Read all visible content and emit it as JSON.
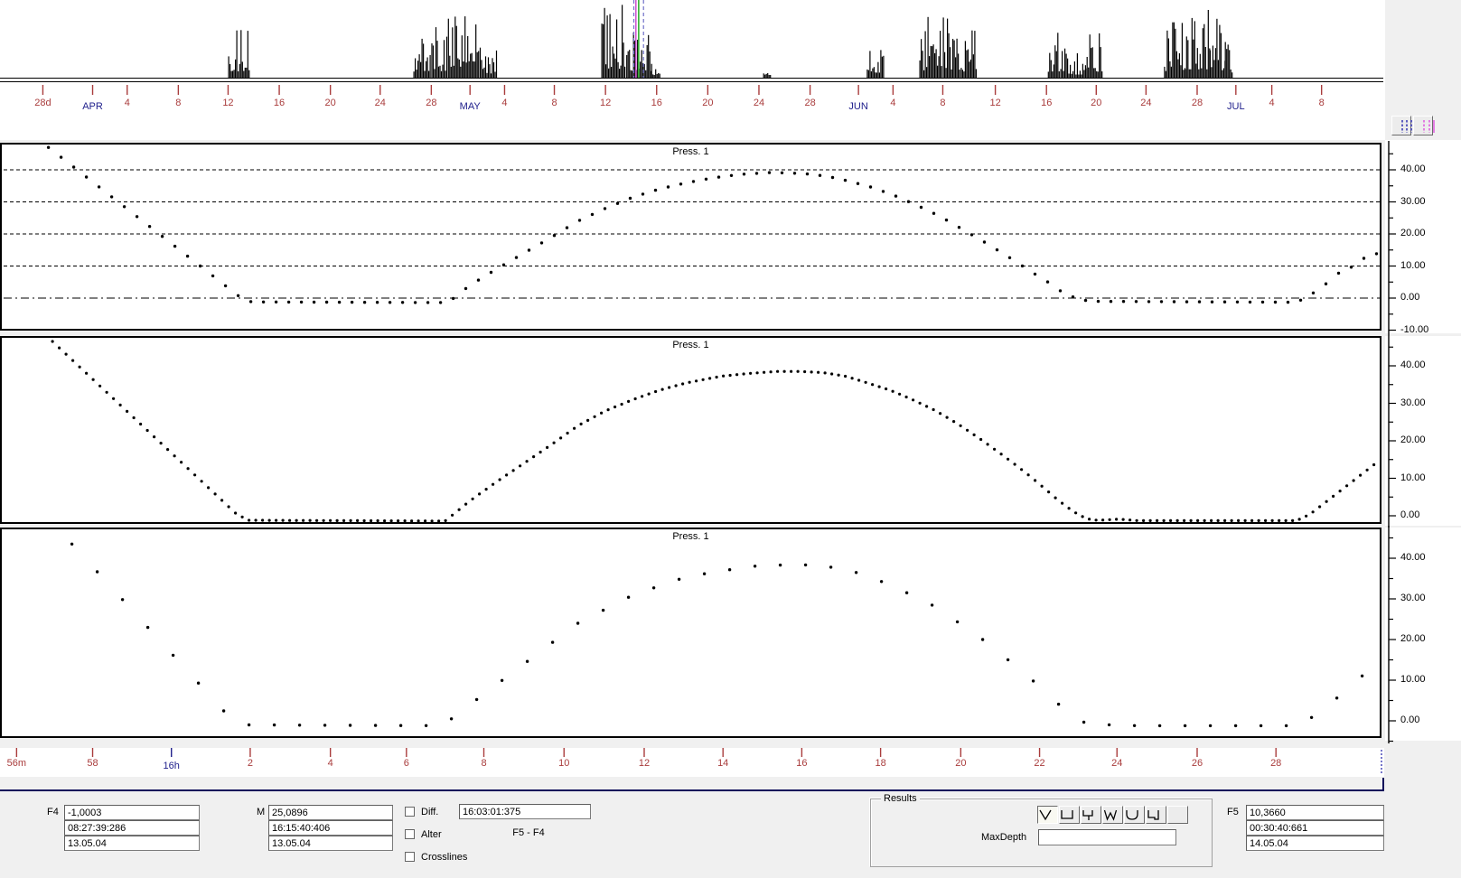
{
  "colors": {
    "day_tick_red": "#a93c3c",
    "month_label_navy": "#20208c",
    "separator_navy": "#0a0a5a",
    "cursor_green": "#2faf2f",
    "cursor_magenta": "#cc44cc",
    "cursor_dashed_blue": "#7070c8",
    "toolbar_icon_navy": "#3c3cb4",
    "toolbar_icon_magenta": "#e060e0",
    "data_black": "#000000"
  },
  "timeline_axis": {
    "ticks": [
      {
        "label": "28d",
        "x": 0.031,
        "month": false
      },
      {
        "label": "APR",
        "x": 0.067,
        "month": true
      },
      {
        "label": "4",
        "x": 0.092,
        "month": false
      },
      {
        "label": "8",
        "x": 0.129,
        "month": false
      },
      {
        "label": "12",
        "x": 0.165,
        "month": false
      },
      {
        "label": "16",
        "x": 0.202,
        "month": false
      },
      {
        "label": "20",
        "x": 0.239,
        "month": false
      },
      {
        "label": "24",
        "x": 0.275,
        "month": false
      },
      {
        "label": "28",
        "x": 0.312,
        "month": false
      },
      {
        "label": "MAY",
        "x": 0.34,
        "month": true
      },
      {
        "label": "4",
        "x": 0.365,
        "month": false
      },
      {
        "label": "8",
        "x": 0.401,
        "month": false
      },
      {
        "label": "12",
        "x": 0.438,
        "month": false
      },
      {
        "label": "16",
        "x": 0.475,
        "month": false
      },
      {
        "label": "20",
        "x": 0.512,
        "month": false
      },
      {
        "label": "24",
        "x": 0.549,
        "month": false
      },
      {
        "label": "28",
        "x": 0.586,
        "month": false
      },
      {
        "label": "JUN",
        "x": 0.621,
        "month": true
      },
      {
        "label": "4",
        "x": 0.646,
        "month": false
      },
      {
        "label": "8",
        "x": 0.682,
        "month": false
      },
      {
        "label": "12",
        "x": 0.72,
        "month": false
      },
      {
        "label": "16",
        "x": 0.757,
        "month": false
      },
      {
        "label": "20",
        "x": 0.793,
        "month": false
      },
      {
        "label": "24",
        "x": 0.829,
        "month": false
      },
      {
        "label": "28",
        "x": 0.866,
        "month": false
      },
      {
        "label": "JUL",
        "x": 0.894,
        "month": true
      },
      {
        "label": "4",
        "x": 0.92,
        "month": false
      },
      {
        "label": "8",
        "x": 0.956,
        "month": false
      }
    ]
  },
  "bottom_axis": {
    "ticks": [
      {
        "label": "56m",
        "x": 0.012,
        "month": false
      },
      {
        "label": "58",
        "x": 0.067,
        "month": false
      },
      {
        "label": "16h",
        "x": 0.124,
        "month": true
      },
      {
        "label": "2",
        "x": 0.181,
        "month": false
      },
      {
        "label": "4",
        "x": 0.239,
        "month": false
      },
      {
        "label": "6",
        "x": 0.294,
        "month": false
      },
      {
        "label": "8",
        "x": 0.35,
        "month": false
      },
      {
        "label": "10",
        "x": 0.408,
        "month": false
      },
      {
        "label": "12",
        "x": 0.466,
        "month": false
      },
      {
        "label": "14",
        "x": 0.523,
        "month": false
      },
      {
        "label": "16",
        "x": 0.58,
        "month": false
      },
      {
        "label": "18",
        "x": 0.637,
        "month": false
      },
      {
        "label": "20",
        "x": 0.695,
        "month": false
      },
      {
        "label": "22",
        "x": 0.752,
        "month": false
      },
      {
        "label": "24",
        "x": 0.808,
        "month": false
      },
      {
        "label": "26",
        "x": 0.866,
        "month": false
      },
      {
        "label": "28",
        "x": 0.923,
        "month": false
      }
    ]
  },
  "panels": [
    {
      "title": "Press. 1",
      "y_ticks": [
        {
          "v": 40,
          "label": "40.00"
        },
        {
          "v": 30,
          "label": "30.00"
        },
        {
          "v": 20,
          "label": "20.00"
        },
        {
          "v": 10,
          "label": "10.00"
        },
        {
          "v": 0,
          "label": "0.00"
        },
        {
          "v": -10,
          "label": "-10.00"
        }
      ],
      "gridlines_dashed": [
        40,
        30,
        20,
        10
      ],
      "gridline_dashdot": 0
    },
    {
      "title": "Press. 1",
      "y_ticks": [
        {
          "v": 40,
          "label": "40.00"
        },
        {
          "v": 30,
          "label": "30.00"
        },
        {
          "v": 20,
          "label": "20.00"
        },
        {
          "v": 10,
          "label": "10.00"
        },
        {
          "v": 0,
          "label": "0.00"
        }
      ],
      "gridlines_dashed": [],
      "gridline_dashdot": null
    },
    {
      "title": "Press. 1",
      "y_ticks": [
        {
          "v": 40,
          "label": "40.00"
        },
        {
          "v": 30,
          "label": "30.00"
        },
        {
          "v": 20,
          "label": "20.00"
        },
        {
          "v": 10,
          "label": "10.00"
        },
        {
          "v": 0,
          "label": "0.00"
        }
      ],
      "gridlines_dashed": [],
      "gridline_dashdot": null
    }
  ],
  "chart_data": [
    {
      "type": "bar",
      "name": "event-activity-timeline",
      "x_domain": [
        "28 Mar",
        "9 Jul"
      ],
      "description": "black event/activity spikes per time, clusters given as fractional x-range and relative max height 0-1",
      "clusters": [
        {
          "x0": 0.165,
          "x1": 0.172,
          "h": 0.68
        },
        {
          "x0": 0.173,
          "x1": 0.18,
          "h": 0.73
        },
        {
          "x0": 0.299,
          "x1": 0.311,
          "h": 0.56
        },
        {
          "x0": 0.312,
          "x1": 0.323,
          "h": 0.71
        },
        {
          "x0": 0.324,
          "x1": 0.335,
          "h": 1.0
        },
        {
          "x0": 0.335,
          "x1": 0.346,
          "h": 0.85
        },
        {
          "x0": 0.347,
          "x1": 0.359,
          "h": 0.47
        },
        {
          "x0": 0.435,
          "x1": 0.452,
          "h": 0.96
        },
        {
          "x0": 0.453,
          "x1": 0.471,
          "h": 0.73
        },
        {
          "x0": 0.471,
          "x1": 0.477,
          "h": 0.2
        },
        {
          "x0": 0.552,
          "x1": 0.557,
          "h": 0.06
        },
        {
          "x0": 0.627,
          "x1": 0.639,
          "h": 0.55
        },
        {
          "x0": 0.665,
          "x1": 0.681,
          "h": 0.8
        },
        {
          "x0": 0.682,
          "x1": 0.694,
          "h": 0.85
        },
        {
          "x0": 0.695,
          "x1": 0.706,
          "h": 0.68
        },
        {
          "x0": 0.758,
          "x1": 0.766,
          "h": 0.61
        },
        {
          "x0": 0.767,
          "x1": 0.776,
          "h": 0.42
        },
        {
          "x0": 0.777,
          "x1": 0.786,
          "h": 0.35
        },
        {
          "x0": 0.786,
          "x1": 0.797,
          "h": 0.66
        },
        {
          "x0": 0.842,
          "x1": 0.858,
          "h": 0.73
        },
        {
          "x0": 0.858,
          "x1": 0.875,
          "h": 0.92
        },
        {
          "x0": 0.875,
          "x1": 0.886,
          "h": 0.78
        },
        {
          "x0": 0.886,
          "x1": 0.891,
          "h": 0.47
        }
      ],
      "cursor": {
        "dashed_x": [
          0.4585,
          0.4655
        ],
        "magenta_x": 0.46,
        "green_x": 0.462
      }
    },
    {
      "type": "scatter",
      "name": "press1-overview",
      "title": "Press. 1",
      "ylim": [
        -10,
        50
      ],
      "anchors": [
        [
          0.035,
          47
        ],
        [
          0.173,
          0.5
        ],
        [
          0.182,
          -1.2
        ],
        [
          0.324,
          -1.4
        ],
        [
          0.34,
          4
        ],
        [
          0.359,
          9
        ],
        [
          0.379,
          14
        ],
        [
          0.399,
          19
        ],
        [
          0.418,
          24
        ],
        [
          0.438,
          28
        ],
        [
          0.458,
          31.5
        ],
        [
          0.477,
          34
        ],
        [
          0.497,
          36
        ],
        [
          0.516,
          37.5
        ],
        [
          0.536,
          38.6
        ],
        [
          0.559,
          39.2
        ],
        [
          0.582,
          38.8
        ],
        [
          0.598,
          38
        ],
        [
          0.614,
          36.5
        ],
        [
          0.631,
          34.5
        ],
        [
          0.647,
          32
        ],
        [
          0.663,
          29
        ],
        [
          0.68,
          25.5
        ],
        [
          0.696,
          21.5
        ],
        [
          0.712,
          17.5
        ],
        [
          0.729,
          13
        ],
        [
          0.745,
          8.5
        ],
        [
          0.758,
          5
        ],
        [
          0.768,
          2
        ],
        [
          0.778,
          0
        ],
        [
          0.788,
          -1
        ],
        [
          0.938,
          -1.3
        ],
        [
          0.948,
          1
        ],
        [
          0.958,
          4
        ],
        [
          0.967,
          7.5
        ],
        [
          0.977,
          9.5
        ],
        [
          0.987,
          12.5
        ],
        [
          0.997,
          14
        ]
      ]
    },
    {
      "type": "scatter",
      "name": "press1-detail",
      "title": "Press. 1",
      "ylim": [
        -5,
        48
      ],
      "anchors": [
        [
          0.038,
          46.5
        ],
        [
          0.171,
          0.5
        ],
        [
          0.18,
          -1.2
        ],
        [
          0.322,
          -1.4
        ],
        [
          0.34,
          4
        ],
        [
          0.359,
          9
        ],
        [
          0.379,
          14
        ],
        [
          0.399,
          19
        ],
        [
          0.418,
          24
        ],
        [
          0.438,
          28
        ],
        [
          0.458,
          31
        ],
        [
          0.477,
          33.5
        ],
        [
          0.497,
          35.5
        ],
        [
          0.523,
          37.3
        ],
        [
          0.543,
          38
        ],
        [
          0.562,
          38.5
        ],
        [
          0.578,
          38.5
        ],
        [
          0.595,
          38.2
        ],
        [
          0.611,
          37.3
        ],
        [
          0.627,
          35.5
        ],
        [
          0.644,
          33.5
        ],
        [
          0.66,
          31
        ],
        [
          0.677,
          28
        ],
        [
          0.693,
          24.5
        ],
        [
          0.709,
          20.5
        ],
        [
          0.726,
          16
        ],
        [
          0.742,
          11.5
        ],
        [
          0.755,
          7.5
        ],
        [
          0.766,
          4
        ],
        [
          0.777,
          1
        ],
        [
          0.786,
          -0.8
        ],
        [
          0.794,
          -1.2
        ],
        [
          0.81,
          -0.9
        ],
        [
          0.823,
          -1.3
        ],
        [
          0.938,
          -1.3
        ],
        [
          0.948,
          0.5
        ],
        [
          0.997,
          14.5
        ]
      ]
    },
    {
      "type": "scatter",
      "name": "press1-coarse",
      "title": "Press. 1",
      "ylim": [
        -5,
        48
      ],
      "anchors": [
        [
          0.052,
          43.5
        ],
        [
          0.167,
          0.5
        ],
        [
          0.176,
          -1
        ],
        [
          0.32,
          -1.2
        ],
        [
          0.34,
          4
        ],
        [
          0.379,
          14
        ],
        [
          0.418,
          24
        ],
        [
          0.458,
          31
        ],
        [
          0.497,
          35.5
        ],
        [
          0.543,
          38
        ],
        [
          0.578,
          38.5
        ],
        [
          0.611,
          37.5
        ],
        [
          0.644,
          33.5
        ],
        [
          0.677,
          28
        ],
        [
          0.709,
          20.5
        ],
        [
          0.742,
          11.5
        ],
        [
          0.766,
          4
        ],
        [
          0.786,
          -0.8
        ],
        [
          0.823,
          -1.2
        ],
        [
          0.938,
          -1.2
        ],
        [
          0.955,
          2
        ],
        [
          0.975,
          8
        ],
        [
          0.997,
          14.5
        ]
      ]
    }
  ],
  "toolbar": {
    "blue_dashes_button": "blue-dashed-cursor-lines",
    "magenta_dashes_button": "magenta-dashed-cursor-lines"
  },
  "controls": {
    "f4": {
      "label": "F4",
      "value": "-1,0003",
      "time": "08:27:39:286",
      "date": "13.05.04"
    },
    "m": {
      "label": "M",
      "value": "25,0896",
      "time": "16:15:40:406",
      "date": "13.05.04"
    },
    "f5": {
      "label": "F5",
      "value": "10,3660",
      "time": "00:30:40:661",
      "date": "14.05.04"
    },
    "checkboxes": [
      {
        "label": "Diff.",
        "checked": false
      },
      {
        "label": "Alter",
        "checked": false
      },
      {
        "label": "Crosslines",
        "checked": false
      }
    ],
    "delta_time": "16:03:01:375",
    "delta_label": "F5 - F4",
    "results": {
      "legend": "Results",
      "maxdepth_label": "MaxDepth",
      "maxdepth_value": "",
      "profile_buttons": [
        {
          "icon": "v-profile",
          "selected": true
        },
        {
          "icon": "u-square-profile",
          "selected": false
        },
        {
          "icon": "step-profile",
          "selected": false
        },
        {
          "icon": "w-profile",
          "selected": false
        },
        {
          "icon": "u-round-profile",
          "selected": false
        },
        {
          "icon": "u-notch-profile",
          "selected": false
        },
        {
          "icon": "blank-profile",
          "selected": false
        }
      ]
    }
  }
}
